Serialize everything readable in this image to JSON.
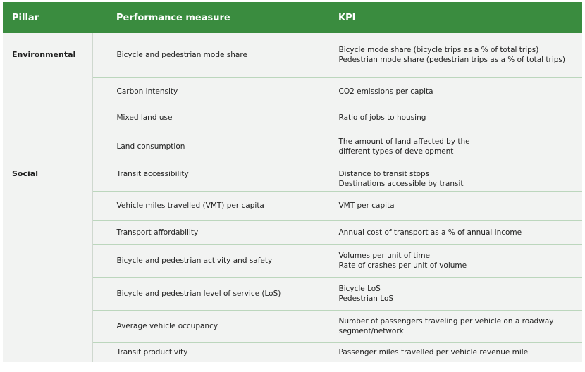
{
  "header": {
    "pillar": "Pillar",
    "measure": "Performance measure",
    "kpi": "KPI"
  },
  "rows": [
    {
      "pillar": "Environmental",
      "measure": "Bicycle and pedestrian mode share",
      "kpi": [
        "Bicycle mode share (bicycle trips as a % of total trips)",
        "Pedestrian mode share (pedestrian trips as a % of total trips)"
      ]
    },
    {
      "measure": "Carbon intensity",
      "kpi": [
        "CO2 emissions per capita"
      ]
    },
    {
      "measure": "Mixed land use",
      "kpi": [
        "Ratio of jobs to housing"
      ]
    },
    {
      "measure": "Land consumption",
      "kpi": [
        "The amount of land affected by the",
        "different types of development"
      ]
    },
    {
      "pillar": "Social",
      "measure": "Transit accessibility",
      "kpi": [
        "Distance to transit stops",
        "Destinations accessible by transit"
      ]
    },
    {
      "measure": "Vehicle miles travelled (VMT) per capita",
      "kpi": [
        "VMT per capita"
      ]
    },
    {
      "measure": "Transport affordability",
      "kpi": [
        "Annual cost of transport as a % of annual income"
      ]
    },
    {
      "measure": "Bicycle and pedestrian activity and safety",
      "kpi": [
        "Volumes per unit of time",
        "Rate of crashes per unit of volume"
      ]
    },
    {
      "measure": "Bicycle and pedestrian level of service (LoS)",
      "kpi": [
        "Bicycle LoS",
        "Pedestrian LoS"
      ]
    },
    {
      "measure": "Average vehicle occupancy",
      "kpi": [
        "Number of passengers traveling per vehicle on a roadway",
        "segment/network"
      ]
    },
    {
      "measure": "Transit productivity",
      "kpi": [
        "Passenger miles travelled per vehicle revenue mile"
      ]
    }
  ]
}
